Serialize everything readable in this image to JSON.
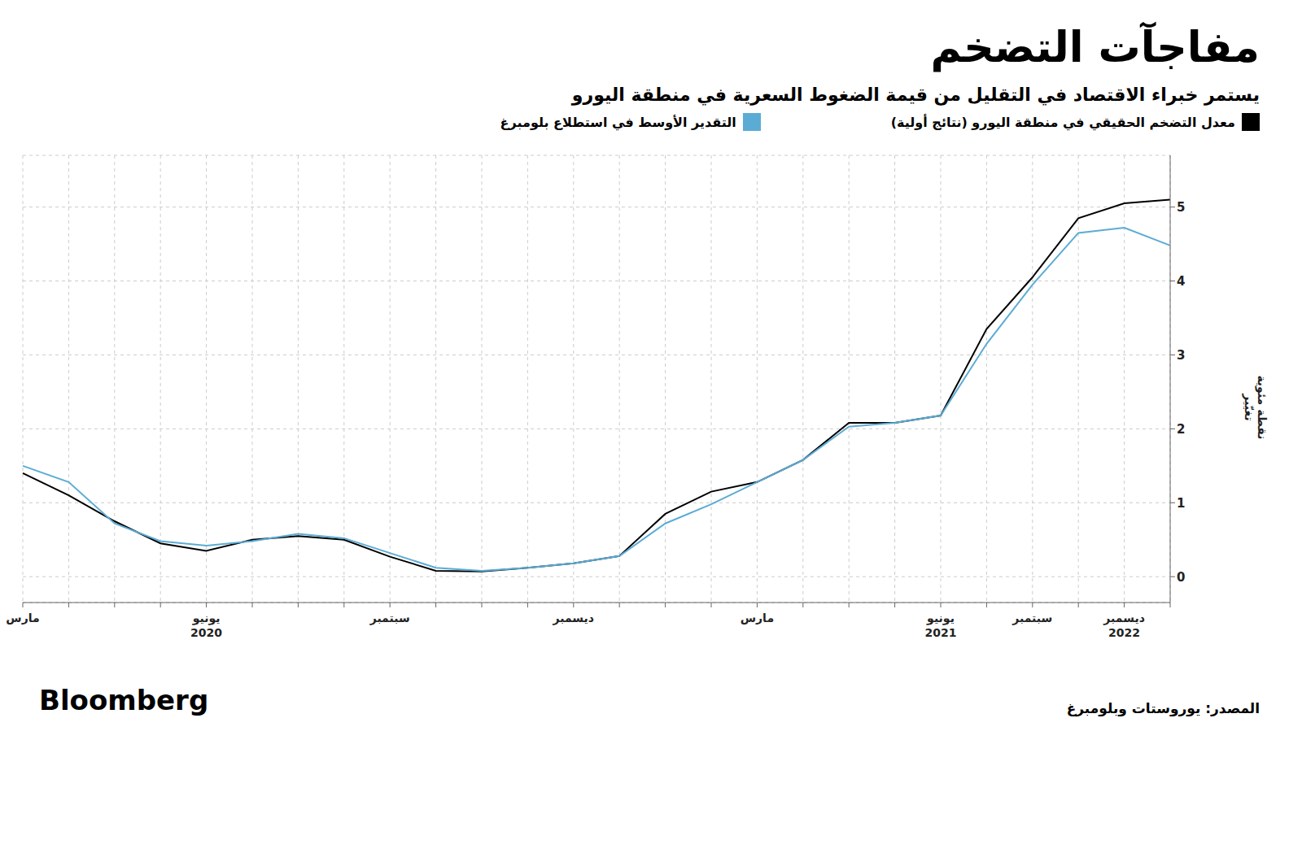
{
  "chart_data": {
    "type": "line",
    "title": "مفاجآت التضخم",
    "subtitle": "يستمر خبراء الاقتصاد في التقليل من قيمة الضغوط السعرية في منطقة اليورو",
    "ylabel": "نقطة مئوية\nتغيّير",
    "annotations": [
      "المصدر: يوروستات وبلومبرغ",
      "Bloomberg"
    ],
    "categories": [
      "مارس",
      null,
      null,
      null,
      "يونيو\n2020",
      null,
      null,
      null,
      "سبتمبر",
      null,
      null,
      null,
      "ديسمبر",
      null,
      null,
      null,
      "مارس",
      null,
      null,
      null,
      "يونيو\n2021",
      null,
      "سبتمبر",
      null,
      "ديسمبر\n2022",
      null
    ],
    "series": [
      {
        "name": "معدل التضخم الحقيقي في منطقة اليورو (نتائج أولية)",
        "color": "#000000",
        "values": [
          1.4,
          1.1,
          0.75,
          0.45,
          0.35,
          0.5,
          0.55,
          0.5,
          0.27,
          0.08,
          0.07,
          0.12,
          0.18,
          0.28,
          0.85,
          1.15,
          1.28,
          1.58,
          2.08,
          2.08,
          2.18,
          3.35,
          4.05,
          4.85,
          5.05,
          5.1
        ]
      },
      {
        "name": "التقدير الأوسط في استطلاع بلومبرغ",
        "color": "#5bacd4",
        "values": [
          1.5,
          1.28,
          0.72,
          0.48,
          0.42,
          0.48,
          0.58,
          0.52,
          0.32,
          0.12,
          0.08,
          0.12,
          0.18,
          0.28,
          0.72,
          0.98,
          1.28,
          1.58,
          2.03,
          2.08,
          2.18,
          3.15,
          3.95,
          4.65,
          4.72,
          4.48
        ]
      }
    ],
    "ylim": [
      -0.35,
      5.7
    ],
    "yticks": [
      0,
      1,
      2,
      3,
      4,
      5
    ],
    "grid": true,
    "legend": "top"
  }
}
